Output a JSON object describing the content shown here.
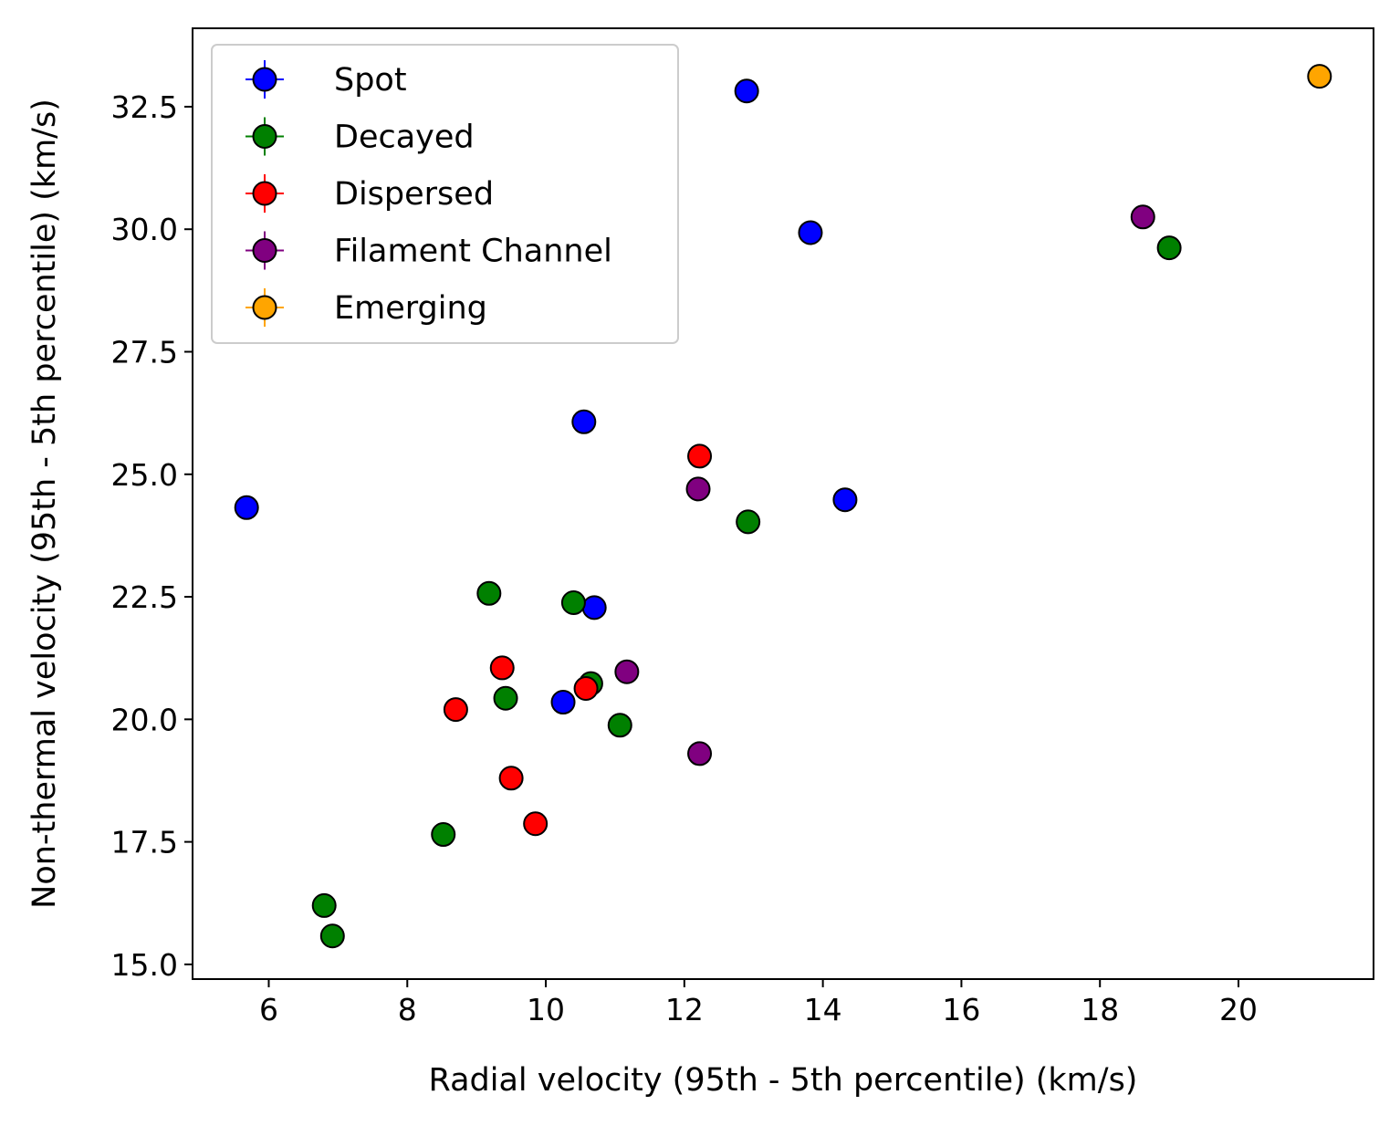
{
  "chart_data": {
    "type": "scatter",
    "xlabel": "Radial velocity (95th - 5th percentile) (km/s)",
    "ylabel": "Non-thermal velocity (95th - 5th percentile) (km/s)",
    "xlim": [
      4.9,
      21.95
    ],
    "ylim": [
      14.7,
      34.1
    ],
    "xticks": [
      6,
      8,
      10,
      12,
      14,
      16,
      18,
      20
    ],
    "yticks": [
      15.0,
      17.5,
      20.0,
      22.5,
      25.0,
      27.5,
      30.0,
      32.5
    ],
    "xtick_labels": [
      "6",
      "8",
      "10",
      "12",
      "14",
      "16",
      "18",
      "20"
    ],
    "ytick_labels": [
      "15.0",
      "17.5",
      "20.0",
      "22.5",
      "25.0",
      "27.5",
      "30.0",
      "32.5"
    ],
    "grid": false,
    "legend_position": "top-left",
    "series": [
      {
        "name": "Spot",
        "color": "#0000ff",
        "x": [
          12.9,
          13.82,
          10.55,
          5.68,
          14.32,
          10.7,
          10.25
        ],
        "y": [
          32.82,
          29.93,
          26.07,
          24.32,
          24.48,
          22.28,
          20.35
        ]
      },
      {
        "name": "Decayed",
        "color": "#008000",
        "x": [
          19.0,
          12.92,
          9.18,
          10.4,
          10.65,
          9.42,
          11.07,
          8.52,
          6.8,
          6.92
        ],
        "y": [
          29.62,
          24.03,
          22.57,
          22.38,
          20.73,
          20.43,
          19.88,
          17.65,
          16.2,
          15.58
        ]
      },
      {
        "name": "Dispersed",
        "color": "#ff0000",
        "x": [
          12.22,
          9.37,
          8.7,
          10.58,
          9.5,
          9.85
        ],
        "y": [
          25.37,
          21.05,
          20.2,
          20.63,
          18.8,
          17.87
        ]
      },
      {
        "name": "Filament Channel",
        "color": "#800080",
        "x": [
          18.62,
          12.2,
          11.17,
          12.22
        ],
        "y": [
          30.25,
          24.7,
          20.97,
          19.3
        ]
      },
      {
        "name": "Emerging",
        "color": "#ffa500",
        "x": [
          21.17
        ],
        "y": [
          33.12
        ]
      }
    ]
  }
}
